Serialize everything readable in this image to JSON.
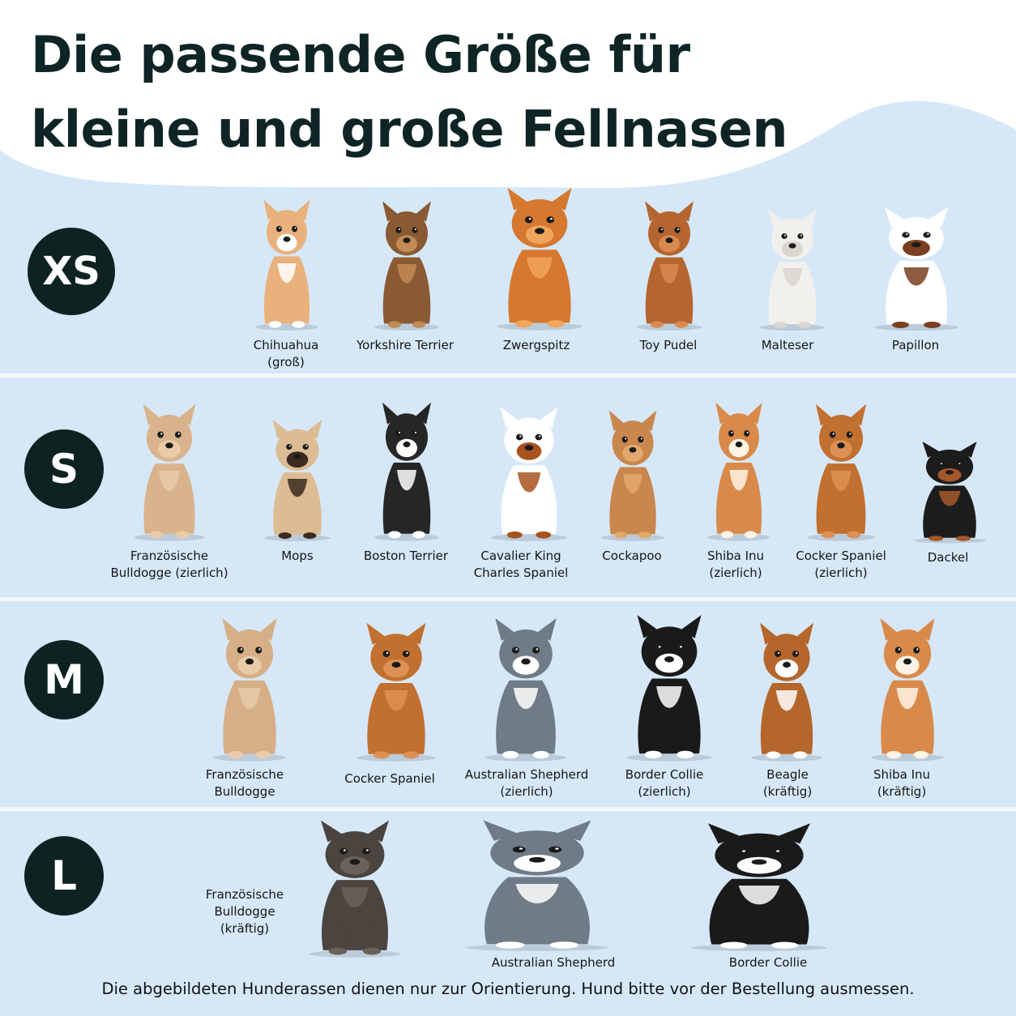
{
  "title": {
    "line1": "Die passende Größe für",
    "line2": "kleine und große Fellnasen"
  },
  "rows": [
    {
      "size": "XS",
      "dogs": [
        {
          "icon": "chihuahua-icon",
          "line1": "Chihuahua",
          "line2": "(groß)",
          "color": "#e9b27d",
          "accent": "#ffffff"
        },
        {
          "icon": "yorkshire-terrier-icon",
          "line1": "Yorkshire Terrier",
          "line2": "",
          "color": "#8a5a33",
          "accent": "#c28a55"
        },
        {
          "icon": "zwergspitz-icon",
          "line1": "Zwergspitz",
          "line2": "",
          "color": "#d6782f",
          "accent": "#f1a45c"
        },
        {
          "icon": "toy-pudel-icon",
          "line1": "Toy Pudel",
          "line2": "",
          "color": "#b5652f",
          "accent": "#d98a4e"
        },
        {
          "icon": "malteser-icon",
          "line1": "Malteser",
          "line2": "",
          "color": "#f2f0ec",
          "accent": "#d9d5cf"
        },
        {
          "icon": "papillon-icon",
          "line1": "Papillon",
          "line2": "",
          "color": "#ffffff",
          "accent": "#7a3f1f"
        }
      ]
    },
    {
      "size": "S",
      "dogs": [
        {
          "icon": "franzoesische-bulldogge-icon",
          "line1": "Französische",
          "line2": "Bulldogge (zierlich)",
          "color": "#d9b38c",
          "accent": "#e9cbaa"
        },
        {
          "icon": "mops-icon",
          "line1": "Mops",
          "line2": "",
          "color": "#dcbc92",
          "accent": "#3a2a20"
        },
        {
          "icon": "boston-terrier-icon",
          "line1": "Boston Terrier",
          "line2": "",
          "color": "#262626",
          "accent": "#ffffff"
        },
        {
          "icon": "cavalier-king-charles-icon",
          "line1": "Cavalier King",
          "line2": "Charles Spaniel",
          "color": "#ffffff",
          "accent": "#a8521f"
        },
        {
          "icon": "cockapoo-icon",
          "line1": "Cockapoo",
          "line2": "",
          "color": "#c9874d",
          "accent": "#e2a86e"
        },
        {
          "icon": "shiba-inu-icon",
          "line1": "Shiba Inu",
          "line2": "(zierlich)",
          "color": "#d98a4a",
          "accent": "#fff3e6"
        },
        {
          "icon": "cocker-spaniel-icon",
          "line1": "Cocker Spaniel",
          "line2": "(zierlich)",
          "color": "#c2702f",
          "accent": "#dc9054"
        },
        {
          "icon": "dackel-icon",
          "line1": "Dackel",
          "line2": "",
          "color": "#1c1c1c",
          "accent": "#a4582a"
        }
      ]
    },
    {
      "size": "M",
      "dogs": [
        {
          "icon": "franzoesische-bulldogge-icon",
          "line1": "Französische",
          "line2": "Bulldogge",
          "color": "#d6af87",
          "accent": "#e9cbaa"
        },
        {
          "icon": "cocker-spaniel-icon",
          "line1": "Cocker Spaniel",
          "line2": "",
          "color": "#c2702f",
          "accent": "#dc9054"
        },
        {
          "icon": "australian-shepherd-icon",
          "line1": "Australian Shepherd",
          "line2": "(zierlich)",
          "color": "#6f7b86",
          "accent": "#ffffff"
        },
        {
          "icon": "border-collie-icon",
          "line1": "Border Collie",
          "line2": "(zierlich)",
          "color": "#1a1a1a",
          "accent": "#ffffff"
        },
        {
          "icon": "beagle-icon",
          "line1": "Beagle",
          "line2": "(kräftig)",
          "color": "#b5662b",
          "accent": "#ffffff"
        },
        {
          "icon": "shiba-inu-icon",
          "line1": "Shiba Inu",
          "line2": "(kräftig)",
          "color": "#d98a4a",
          "accent": "#fff3e6"
        }
      ]
    },
    {
      "size": "L",
      "dogs": [
        {
          "icon": "franzoesische-bulldogge-icon",
          "line1": "Französische",
          "line2": "Bulldogge",
          "line3": "(kräftig)",
          "color": "#4b443f",
          "accent": "#6a615a"
        },
        {
          "icon": "australian-shepherd-icon",
          "line1": "Australian Shepherd",
          "line2": "",
          "color": "#6f7b86",
          "accent": "#ffffff"
        },
        {
          "icon": "border-collie-icon",
          "line1": "Border Collie",
          "line2": "",
          "color": "#1a1a1a",
          "accent": "#ffffff"
        }
      ]
    }
  ],
  "footer": "Die abgebildeten Hunderassen dienen nur zur Orientierung. Hund bitte vor der Bestellung ausmessen."
}
